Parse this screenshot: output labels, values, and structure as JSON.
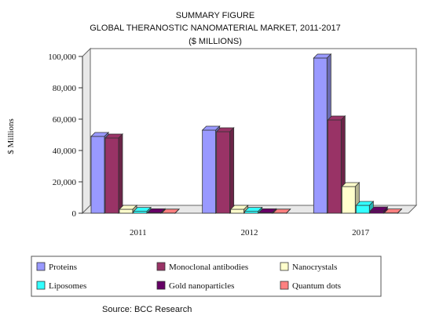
{
  "chart_data": {
    "type": "bar",
    "title_lines": [
      "SUMMARY FIGURE",
      "GLOBAL THERANOSTIC NANOMATERIAL MARKET, 2011-2017",
      "($ MILLIONS)"
    ],
    "ylabel": "$ Millions",
    "xlabel": "",
    "categories": [
      "2011",
      "2012",
      "2017"
    ],
    "ylim": [
      0,
      100000
    ],
    "yticks": [
      "0",
      "20,000",
      "40,000",
      "60,000",
      "80,000",
      "100,000"
    ],
    "series": [
      {
        "name": "Proteins",
        "values": [
          49000,
          53000,
          99000
        ],
        "color": "#9999ff"
      },
      {
        "name": "Monoclonal antibodies",
        "values": [
          48000,
          52000,
          59500
        ],
        "color": "#993366"
      },
      {
        "name": "Nanocrystals",
        "values": [
          2500,
          2500,
          17000
        ],
        "color": "#ffffcc"
      },
      {
        "name": "Liposomes",
        "values": [
          1200,
          1200,
          5000
        ],
        "color": "#33ffff"
      },
      {
        "name": "Gold nanoparticles",
        "values": [
          300,
          300,
          1500
        ],
        "color": "#660066"
      },
      {
        "name": "Quantum dots",
        "values": [
          100,
          100,
          200
        ],
        "color": "#ff8080"
      }
    ],
    "grid": false,
    "legend_position": "bottom",
    "source": "Source: BCC Research"
  }
}
